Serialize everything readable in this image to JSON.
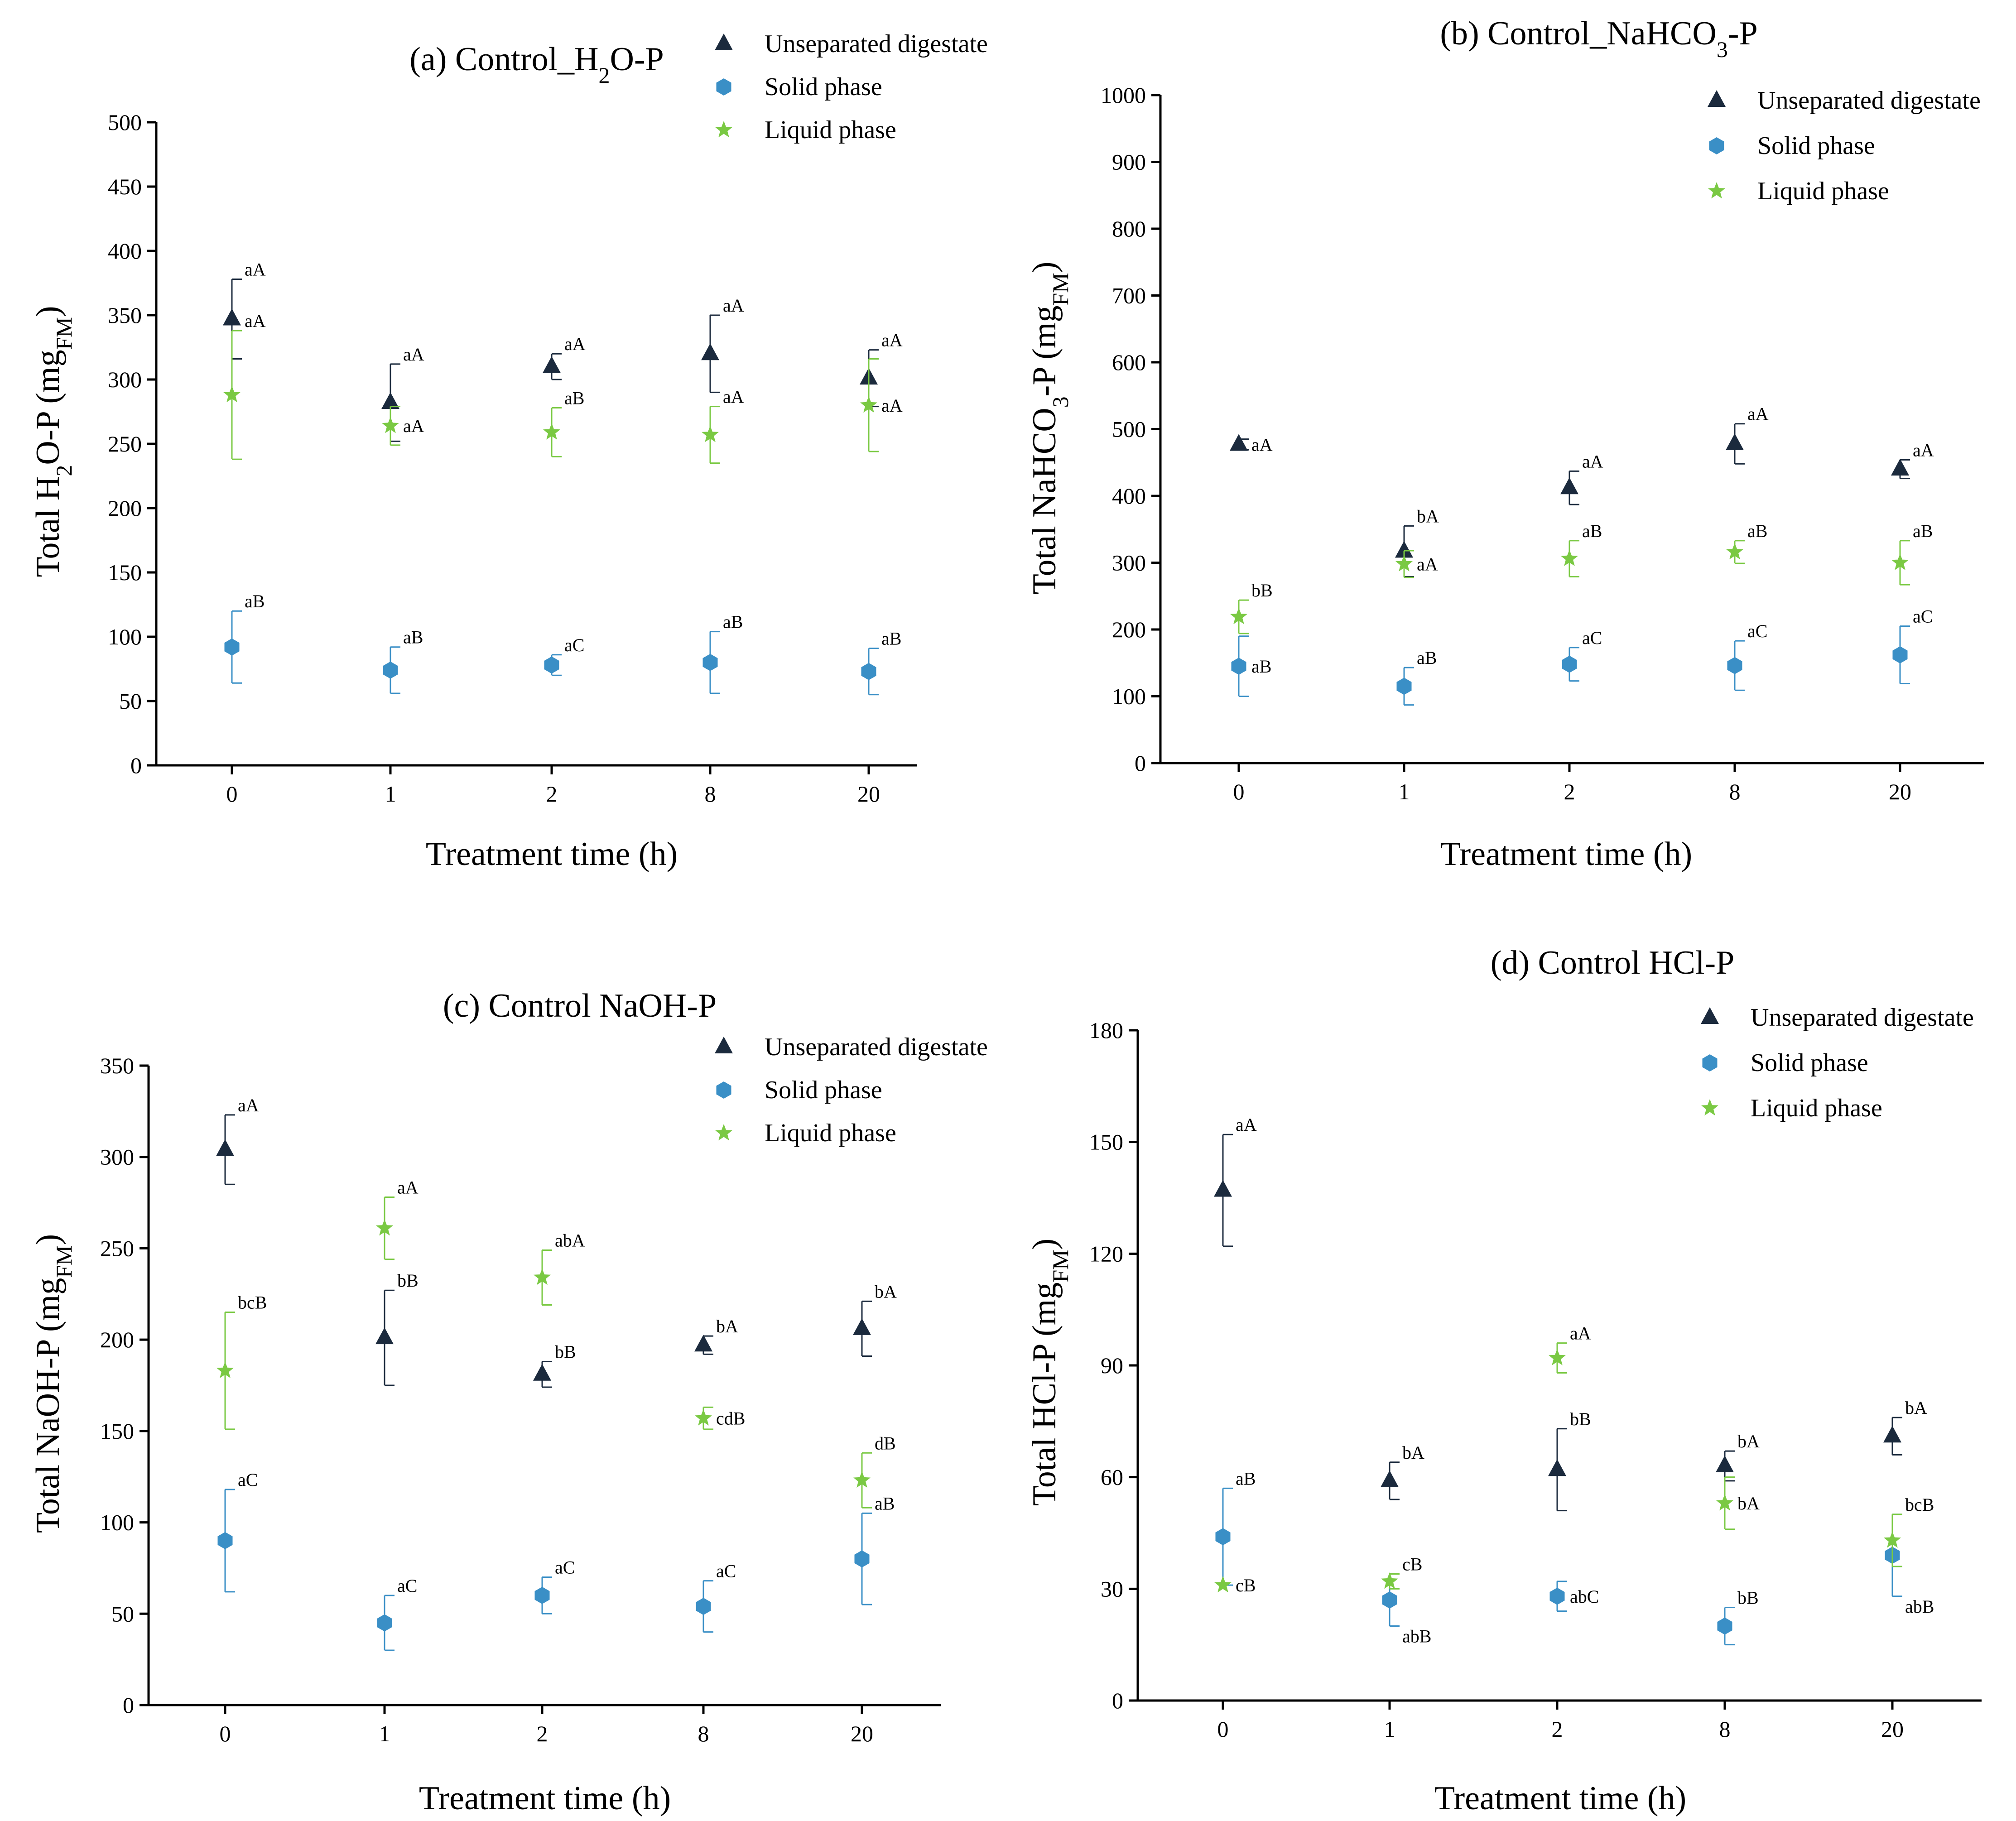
{
  "colors": {
    "unseparated": "#1b2a3d",
    "solid": "#3a8fc6",
    "liquid": "#7ac943",
    "axis": "#000000"
  },
  "chart_data": [
    {
      "type": "scatter",
      "title_pre": "(a) Control_H",
      "title_sub": "2",
      "title_post": "O-P",
      "xlabel": "Treatment time (h)",
      "ylabel_pre": "Total H",
      "ylabel_sub1": "2",
      "ylabel_mid": "O-P (mg",
      "ylabel_sub2": "FM",
      "ylabel_post": ")",
      "categories": [
        "0",
        "1",
        "2",
        "8",
        "20"
      ],
      "ylim": [
        0,
        500
      ],
      "yticks": [
        "0",
        "50",
        "100",
        "150",
        "200",
        "250",
        "300",
        "350",
        "400",
        "450",
        "500"
      ],
      "legend": [
        "Unseparated digestate",
        "Solid phase",
        "Liquid phase"
      ],
      "series": [
        {
          "name": "Unseparated digestate",
          "values": [
            347,
            282,
            310,
            320,
            301
          ],
          "err": [
            31,
            30,
            10,
            30,
            22
          ],
          "labels": [
            "aA",
            "aA",
            "aA",
            "aA",
            "aA"
          ]
        },
        {
          "name": "Solid phase",
          "values": [
            92,
            74,
            78,
            80,
            73
          ],
          "err": [
            28,
            18,
            8,
            24,
            18
          ],
          "labels": [
            "aB",
            "aB",
            "aC",
            "aB",
            "aB"
          ]
        },
        {
          "name": "Liquid phase",
          "values": [
            288,
            264,
            259,
            257,
            280
          ],
          "err": [
            50,
            15,
            19,
            22,
            36
          ],
          "labels": [
            "aA",
            "aA",
            "aB",
            "aA",
            "aA"
          ]
        }
      ]
    },
    {
      "type": "scatter",
      "title_pre": "(b) Control_NaHCO",
      "title_sub": "3",
      "title_post": "-P",
      "xlabel": "Treatment time (h)",
      "ylabel_pre": "Total NaHCO",
      "ylabel_sub1": "3",
      "ylabel_mid": "-P (mg",
      "ylabel_sub2": "FM",
      "ylabel_post": ")",
      "categories": [
        "0",
        "1",
        "2",
        "8",
        "20"
      ],
      "ylim": [
        0,
        1000
      ],
      "yticks": [
        "0",
        "100",
        "200",
        "300",
        "400",
        "500",
        "600",
        "700",
        "800",
        "900",
        "1000"
      ],
      "legend": [
        "Unseparated digestate",
        "Solid phase",
        "Liquid phase"
      ],
      "series": [
        {
          "name": "Unseparated digestate",
          "values": [
            477,
            317,
            412,
            478,
            440
          ],
          "err": [
            8,
            38,
            25,
            30,
            14
          ],
          "labels": [
            "aA",
            "bA",
            "aA",
            "aA",
            "aA"
          ]
        },
        {
          "name": "Solid phase",
          "values": [
            145,
            115,
            148,
            146,
            162
          ],
          "err": [
            45,
            28,
            25,
            37,
            43
          ],
          "labels": [
            "aB",
            "aB",
            "aC",
            "aC",
            "aC"
          ]
        },
        {
          "name": "Liquid phase",
          "values": [
            219,
            298,
            306,
            316,
            300
          ],
          "err": [
            25,
            20,
            27,
            17,
            33
          ],
          "labels": [
            "bB",
            "aA",
            "aB",
            "aB",
            "aB"
          ]
        }
      ]
    },
    {
      "type": "scatter",
      "title_pre": "(c) Control NaOH-P",
      "title_sub": "",
      "title_post": "",
      "xlabel": "Treatment time (h)",
      "ylabel_pre": "Total NaOH-P (mg",
      "ylabel_sub1": "FM",
      "ylabel_mid": ")",
      "ylabel_sub2": "",
      "ylabel_post": "",
      "categories": [
        "0",
        "1",
        "2",
        "8",
        "20"
      ],
      "ylim": [
        0,
        350
      ],
      "yticks": [
        "0",
        "50",
        "100",
        "150",
        "200",
        "250",
        "300",
        "350"
      ],
      "legend": [
        "Unseparated digestate",
        "Solid phase",
        "Liquid phase"
      ],
      "series": [
        {
          "name": "Unseparated digestate",
          "values": [
            304,
            201,
            181,
            197,
            206
          ],
          "err": [
            19,
            26,
            7,
            5,
            15
          ],
          "labels": [
            "aA",
            "bB",
            "bB",
            "bA",
            "bA"
          ]
        },
        {
          "name": "Solid phase",
          "values": [
            90,
            45,
            60,
            54,
            80
          ],
          "err": [
            28,
            15,
            10,
            14,
            25
          ],
          "labels": [
            "aC",
            "aC",
            "aC",
            "aC",
            "aB"
          ]
        },
        {
          "name": "Liquid phase",
          "values": [
            183,
            261,
            234,
            157,
            123
          ],
          "err": [
            32,
            17,
            15,
            6,
            15
          ],
          "labels": [
            "bcB",
            "aA",
            "abA",
            "cdB",
            "dB"
          ]
        }
      ]
    },
    {
      "type": "scatter",
      "title_pre": "(d) Control HCl-P",
      "title_sub": "",
      "title_post": "",
      "xlabel": "Treatment time (h)",
      "ylabel_pre": "Total HCl-P (mg",
      "ylabel_sub1": "FM",
      "ylabel_mid": ")",
      "ylabel_sub2": "",
      "ylabel_post": "",
      "categories": [
        "0",
        "1",
        "2",
        "8",
        "20"
      ],
      "ylim": [
        0,
        180
      ],
      "yticks": [
        "0",
        "30",
        "60",
        "90",
        "120",
        "150",
        "180"
      ],
      "legend": [
        "Unseparated digestate",
        "Solid phase",
        "Liquid phase"
      ],
      "series": [
        {
          "name": "Unseparated digestate",
          "values": [
            137,
            59,
            62,
            63,
            71
          ],
          "err": [
            15,
            5,
            11,
            4,
            5
          ],
          "labels": [
            "aA",
            "bA",
            "bB",
            "bA",
            "bA"
          ]
        },
        {
          "name": "Solid phase",
          "values": [
            44,
            27,
            28,
            20,
            39
          ],
          "err": [
            13,
            7,
            4,
            5,
            11
          ],
          "labels": [
            "aB",
            "abB",
            "abC",
            "bB",
            "abB"
          ]
        },
        {
          "name": "Liquid phase",
          "values": [
            31,
            32,
            92,
            53,
            43
          ],
          "err": [
            0,
            2,
            4,
            7,
            7
          ],
          "labels": [
            "cB",
            "cB",
            "aA",
            "bA",
            "bcB"
          ]
        }
      ]
    }
  ]
}
